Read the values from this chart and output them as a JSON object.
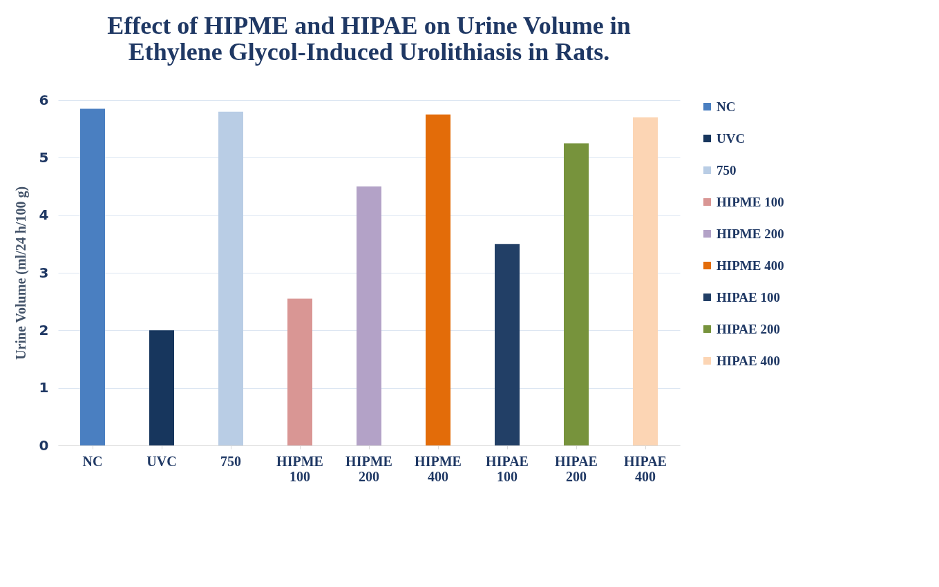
{
  "chart_data": {
    "type": "bar",
    "title": "Effect of HIPME and HIPAE on Urine Volume in Ethylene Glycol-Induced Urolithiasis in Rats.",
    "ylabel": "Urine Volume (ml/24 h/100 g)",
    "categories": [
      "NC",
      "UVC",
      "750",
      "HIPME 100",
      "HIPME 200",
      "HIPME 400",
      "HIPAE 100",
      "HIPAE 200",
      "HIPAE 400"
    ],
    "series": [
      {
        "name": "NC",
        "color": "#4a7fc1",
        "values": [
          5.85,
          null,
          null,
          null,
          null,
          null,
          null,
          null,
          null
        ]
      },
      {
        "name": "UVC",
        "color": "#17365d",
        "values": [
          null,
          2.0,
          null,
          null,
          null,
          null,
          null,
          null,
          null
        ]
      },
      {
        "name": "750",
        "color": "#b9cde5",
        "values": [
          null,
          null,
          5.8,
          null,
          null,
          null,
          null,
          null,
          null
        ]
      },
      {
        "name": "HIPME 100",
        "color": "#d99694",
        "values": [
          null,
          null,
          null,
          2.55,
          null,
          null,
          null,
          null,
          null
        ]
      },
      {
        "name": "HIPME 200",
        "color": "#b3a2c7",
        "values": [
          null,
          null,
          null,
          null,
          4.5,
          null,
          null,
          null,
          null
        ]
      },
      {
        "name": "HIPME 400",
        "color": "#e36c09",
        "values": [
          null,
          null,
          null,
          null,
          null,
          5.75,
          null,
          null,
          null
        ]
      },
      {
        "name": "HIPAE 100",
        "color": "#223f66",
        "values": [
          null,
          null,
          null,
          null,
          null,
          null,
          3.5,
          null,
          null
        ]
      },
      {
        "name": "HIPAE 200",
        "color": "#77933c",
        "values": [
          null,
          null,
          null,
          null,
          null,
          null,
          null,
          5.25,
          null
        ]
      },
      {
        "name": "HIPAE 400",
        "color": "#fcd5b4",
        "values": [
          null,
          null,
          null,
          null,
          null,
          null,
          null,
          null,
          5.7
        ]
      }
    ],
    "ylim": [
      0,
      6
    ],
    "yticks": [
      0,
      1,
      2,
      3,
      4,
      5,
      6
    ],
    "grid": "y",
    "legend": "right"
  }
}
